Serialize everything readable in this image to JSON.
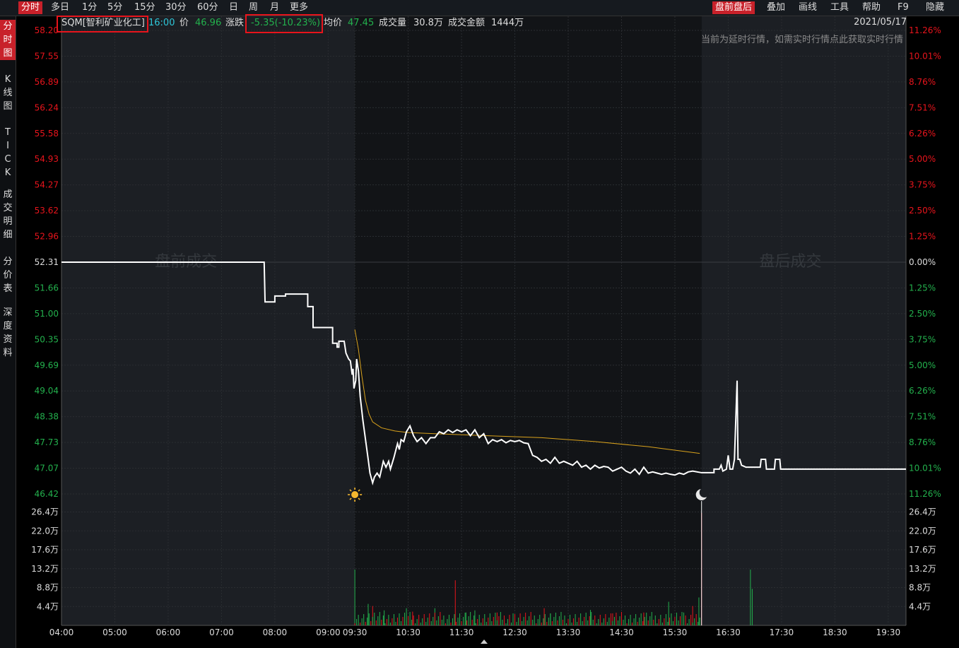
{
  "topbar": {
    "left_tabs": [
      "分时",
      "多日",
      "1分",
      "5分",
      "15分",
      "30分",
      "60分",
      "日",
      "周",
      "月",
      "更多"
    ],
    "right_tabs": [
      "盘前盘后",
      "叠加",
      "画线",
      "工具",
      "帮助",
      "F9",
      "隐藏"
    ],
    "active_left": "分时",
    "active_right": "盘前盘后"
  },
  "sidebar": {
    "items": [
      "分时图",
      "K线图",
      "TICK",
      "成交明细",
      "分价表",
      "深度资料"
    ]
  },
  "quote": {
    "symbol": "SQM[智利矿业化工]",
    "time": "16:00",
    "price_label": "价",
    "price": "46.96",
    "change_label": "涨跌",
    "change": "-5.35(-10.23%)",
    "avg_label": "均价",
    "avg": "47.45",
    "volume_label": "成交量",
    "volume": "30.8万",
    "amount_label": "成交金额",
    "amount": "1444万",
    "date": "2021/05/17",
    "notice": "当前为延时行情，如需实时行情点此获取实时行情"
  },
  "watermarks": {
    "premarket": "盘前成交",
    "afterhours": "盘后成交"
  },
  "colors": {
    "up": "#e8141c",
    "down": "#23b14d",
    "price_line": "#ffffff",
    "avg_line": "#d9a21c",
    "prev_close": "#ffffff"
  },
  "chart_data": {
    "type": "line",
    "prev_close": 52.31,
    "price_ticks": [
      "58.20",
      "57.55",
      "56.89",
      "56.24",
      "55.58",
      "54.93",
      "54.27",
      "53.62",
      "52.96",
      "52.31",
      "51.66",
      "51.00",
      "50.35",
      "49.69",
      "49.04",
      "48.38",
      "47.73",
      "47.07",
      "46.42"
    ],
    "pct_ticks": [
      "11.26%",
      "10.01%",
      "8.76%",
      "7.51%",
      "6.26%",
      "5.00%",
      "3.75%",
      "2.50%",
      "1.25%",
      "0.00%",
      "1.25%",
      "2.50%",
      "3.75%",
      "5.00%",
      "6.26%",
      "7.51%",
      "8.76%",
      "10.01%",
      "11.26%"
    ],
    "volume_ticks": [
      "26.4万",
      "22.0万",
      "17.6万",
      "13.2万",
      "8.8万",
      "4.4万"
    ],
    "time_ticks": [
      "04:00",
      "05:00",
      "06:00",
      "07:00",
      "08:00",
      "09:00",
      "09:30",
      "10:30",
      "11:30",
      "12:30",
      "13:30",
      "14:30",
      "15:30",
      "16:30",
      "17:30",
      "18:30",
      "19:30"
    ],
    "ylim": [
      46.42,
      58.2
    ],
    "volume_max": 26.4,
    "price_series": [
      [
        "04:00",
        52.31
      ],
      [
        "07:48",
        52.31
      ],
      [
        "07:49",
        51.3
      ],
      [
        "08:00",
        51.3
      ],
      [
        "08:00",
        51.45
      ],
      [
        "08:12",
        51.45
      ],
      [
        "08:12",
        51.5
      ],
      [
        "08:37",
        51.5
      ],
      [
        "08:37",
        51.18
      ],
      [
        "08:43",
        51.18
      ],
      [
        "08:43",
        50.65
      ],
      [
        "09:05",
        50.65
      ],
      [
        "09:05",
        50.25
      ],
      [
        "09:10",
        50.25
      ],
      [
        "09:10",
        50.15
      ],
      [
        "09:12",
        50.15
      ],
      [
        "09:12",
        50.3
      ],
      [
        "09:18",
        50.3
      ],
      [
        "09:20",
        50.0
      ],
      [
        "09:23",
        49.85
      ],
      [
        "09:25",
        49.8
      ],
      [
        "09:27",
        49.45
      ],
      [
        "09:28",
        49.6
      ],
      [
        "09:29",
        49.1
      ],
      [
        "09:31",
        49.3
      ],
      [
        "09:32",
        49.85
      ],
      [
        "09:34",
        49.55
      ],
      [
        "09:36",
        48.9
      ],
      [
        "09:39",
        48.3
      ],
      [
        "09:42",
        47.8
      ],
      [
        "09:45",
        47.3
      ],
      [
        "09:47",
        46.95
      ],
      [
        "09:50",
        46.7
      ],
      [
        "09:52",
        46.85
      ],
      [
        "09:55",
        46.95
      ],
      [
        "09:58",
        46.85
      ],
      [
        "10:00",
        47.05
      ],
      [
        "10:02",
        47.25
      ],
      [
        "10:05",
        47.1
      ],
      [
        "10:08",
        47.25
      ],
      [
        "10:10",
        47.05
      ],
      [
        "10:14",
        47.35
      ],
      [
        "10:18",
        47.7
      ],
      [
        "10:20",
        47.55
      ],
      [
        "10:22",
        47.8
      ],
      [
        "10:25",
        47.75
      ],
      [
        "10:28",
        48.0
      ],
      [
        "10:32",
        48.15
      ],
      [
        "10:36",
        47.9
      ],
      [
        "10:40",
        47.75
      ],
      [
        "10:45",
        47.85
      ],
      [
        "10:50",
        47.7
      ],
      [
        "10:55",
        47.85
      ],
      [
        "11:00",
        47.85
      ],
      [
        "11:05",
        48.0
      ],
      [
        "11:10",
        47.95
      ],
      [
        "11:15",
        48.05
      ],
      [
        "11:20",
        47.98
      ],
      [
        "11:25",
        48.05
      ],
      [
        "11:30",
        48.0
      ],
      [
        "11:35",
        48.05
      ],
      [
        "11:40",
        47.9
      ],
      [
        "11:45",
        48.05
      ],
      [
        "11:50",
        47.85
      ],
      [
        "11:55",
        47.95
      ],
      [
        "12:00",
        47.7
      ],
      [
        "12:05",
        47.8
      ],
      [
        "12:10",
        47.75
      ],
      [
        "12:15",
        47.8
      ],
      [
        "12:20",
        47.72
      ],
      [
        "12:25",
        47.78
      ],
      [
        "12:30",
        47.75
      ],
      [
        "12:35",
        47.78
      ],
      [
        "12:40",
        47.72
      ],
      [
        "12:45",
        47.7
      ],
      [
        "12:50",
        47.4
      ],
      [
        "12:55",
        47.35
      ],
      [
        "13:00",
        47.25
      ],
      [
        "13:05",
        47.3
      ],
      [
        "13:10",
        47.2
      ],
      [
        "13:15",
        47.35
      ],
      [
        "13:20",
        47.2
      ],
      [
        "13:25",
        47.25
      ],
      [
        "13:30",
        47.2
      ],
      [
        "13:35",
        47.15
      ],
      [
        "13:40",
        47.25
      ],
      [
        "13:45",
        47.1
      ],
      [
        "13:50",
        47.15
      ],
      [
        "13:55",
        47.05
      ],
      [
        "14:00",
        47.15
      ],
      [
        "14:05",
        47.08
      ],
      [
        "14:10",
        47.12
      ],
      [
        "14:15",
        47.1
      ],
      [
        "14:20",
        47.0
      ],
      [
        "14:25",
        47.05
      ],
      [
        "14:30",
        47.1
      ],
      [
        "14:35",
        47.0
      ],
      [
        "14:40",
        46.95
      ],
      [
        "14:45",
        47.05
      ],
      [
        "14:50",
        46.92
      ],
      [
        "14:55",
        47.1
      ],
      [
        "15:00",
        46.95
      ],
      [
        "15:05",
        46.98
      ],
      [
        "15:10",
        46.95
      ],
      [
        "15:15",
        46.92
      ],
      [
        "15:20",
        46.95
      ],
      [
        "15:25",
        46.92
      ],
      [
        "15:30",
        46.9
      ],
      [
        "15:35",
        46.95
      ],
      [
        "15:40",
        46.92
      ],
      [
        "15:45",
        46.98
      ],
      [
        "15:50",
        47.0
      ],
      [
        "16:00",
        46.96
      ],
      [
        "16:14",
        46.96
      ],
      [
        "16:14",
        47.05
      ],
      [
        "16:20",
        47.05
      ],
      [
        "16:22",
        47.15
      ],
      [
        "16:24",
        47.0
      ],
      [
        "16:28",
        47.05
      ],
      [
        "16:30",
        47.4
      ],
      [
        "16:32",
        47.05
      ],
      [
        "16:35",
        47.05
      ],
      [
        "16:37",
        47.3
      ],
      [
        "16:40",
        49.3
      ],
      [
        "16:41",
        47.3
      ],
      [
        "16:43",
        47.3
      ],
      [
        "16:45",
        47.15
      ],
      [
        "16:50",
        47.1
      ],
      [
        "17:06",
        47.1
      ],
      [
        "17:07",
        47.3
      ],
      [
        "17:12",
        47.3
      ],
      [
        "17:13",
        47.05
      ],
      [
        "17:22",
        47.05
      ],
      [
        "17:23",
        47.3
      ],
      [
        "17:28",
        47.3
      ],
      [
        "17:29",
        47.05
      ],
      [
        "19:50",
        47.05
      ]
    ],
    "avg_series": [
      [
        "09:30",
        50.6
      ],
      [
        "09:34",
        50.1
      ],
      [
        "09:38",
        49.4
      ],
      [
        "09:42",
        48.8
      ],
      [
        "09:46",
        48.45
      ],
      [
        "09:50",
        48.25
      ],
      [
        "10:00",
        48.1
      ],
      [
        "10:15",
        48.02
      ],
      [
        "10:30",
        47.98
      ],
      [
        "11:00",
        47.95
      ],
      [
        "12:00",
        47.9
      ],
      [
        "13:00",
        47.85
      ],
      [
        "14:00",
        47.75
      ],
      [
        "15:00",
        47.62
      ],
      [
        "15:58",
        47.45
      ]
    ],
    "volume_spikes": [
      [
        "09:30",
        13.0,
        "down"
      ],
      [
        "09:45",
        5.0,
        "down"
      ],
      [
        "09:50",
        4.5,
        "up"
      ],
      [
        "10:03",
        3.5,
        "down"
      ],
      [
        "10:28",
        4.0,
        "down"
      ],
      [
        "10:35",
        3.2,
        "up"
      ],
      [
        "11:00",
        4.0,
        "down"
      ],
      [
        "11:23",
        10.5,
        "up"
      ],
      [
        "11:35",
        3.0,
        "down"
      ],
      [
        "11:45",
        3.5,
        "down"
      ],
      [
        "12:10",
        3.0,
        "up"
      ],
      [
        "12:28",
        2.8,
        "down"
      ],
      [
        "13:03",
        4.0,
        "up"
      ],
      [
        "13:10",
        2.8,
        "down"
      ],
      [
        "13:55",
        3.6,
        "down"
      ],
      [
        "14:20",
        2.8,
        "up"
      ],
      [
        "14:55",
        3.0,
        "up"
      ],
      [
        "15:23",
        5.5,
        "down"
      ],
      [
        "15:40",
        3.0,
        "down"
      ],
      [
        "15:50",
        4.5,
        "up"
      ],
      [
        "15:57",
        6.5,
        "down"
      ],
      [
        "16:00",
        26.2,
        "up"
      ],
      [
        "16:55",
        13.0,
        "down"
      ],
      [
        "16:57",
        8.5,
        "down"
      ]
    ]
  }
}
